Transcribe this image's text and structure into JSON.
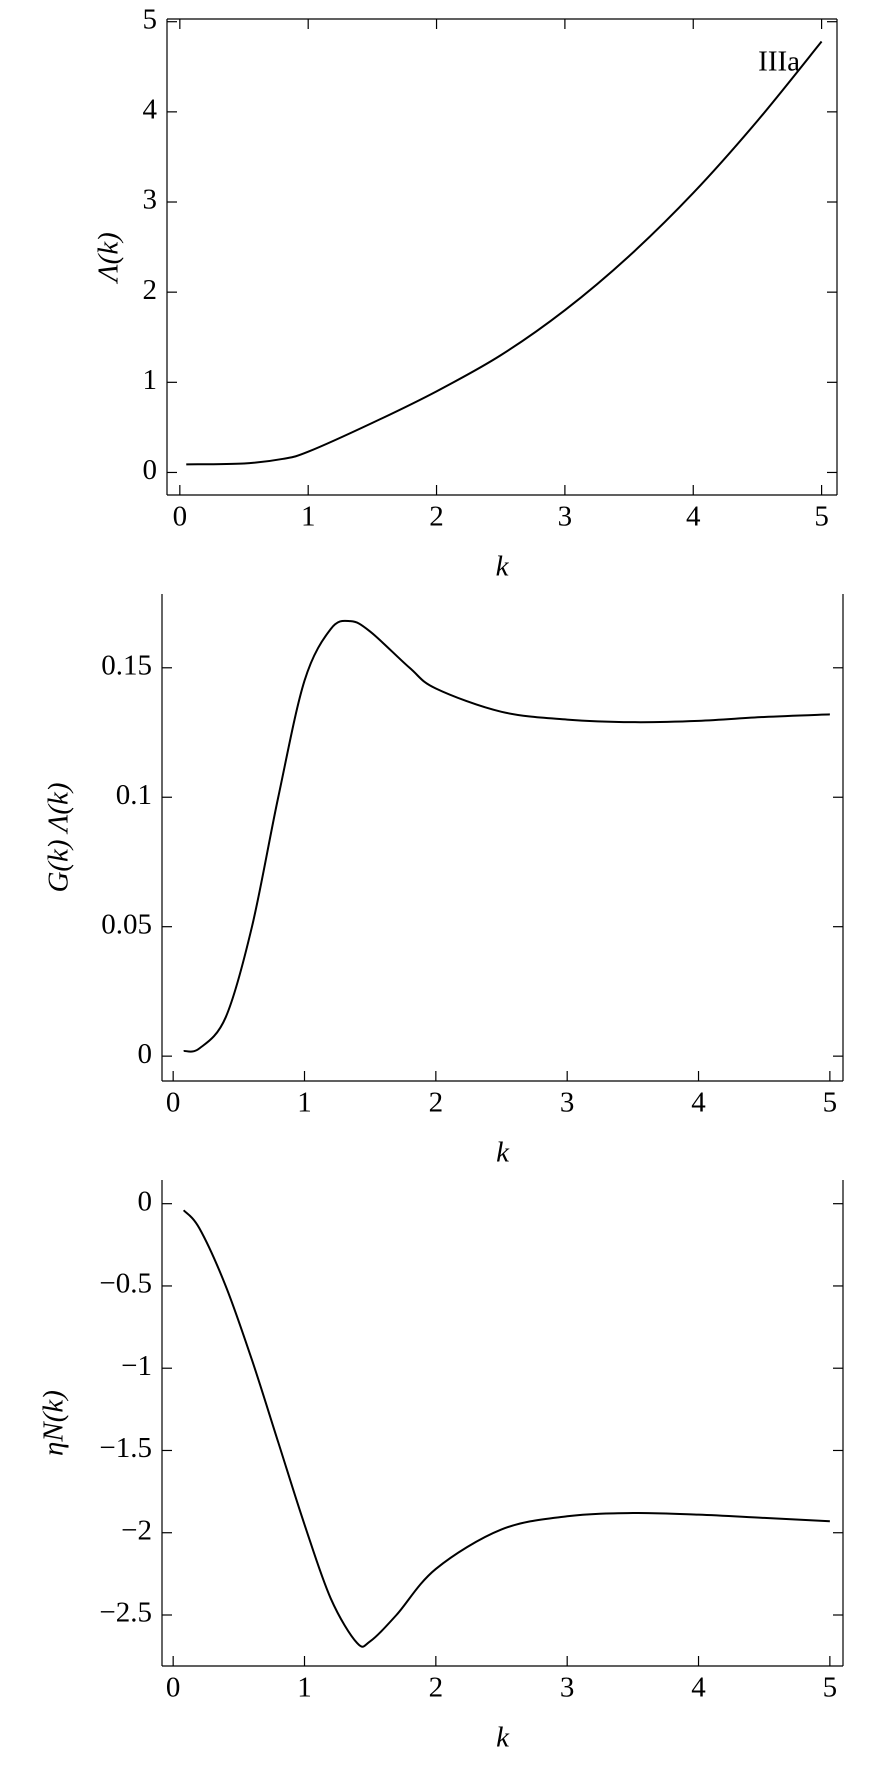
{
  "chart_data": [
    {
      "type": "line",
      "xlabel": "k",
      "ylabel": "Λ(k)",
      "annotation": "IIIa",
      "x": [
        0.05,
        0.5,
        0.8,
        1.0,
        1.5,
        2.0,
        2.5,
        3.0,
        3.5,
        4.0,
        4.5,
        5.0
      ],
      "series": [
        {
          "name": null,
          "color": "#000000",
          "values": [
            0.09,
            0.1,
            0.15,
            0.23,
            0.55,
            0.9,
            1.3,
            1.8,
            2.4,
            3.1,
            3.9,
            4.78
          ]
        }
      ],
      "xlim": [
        -0.1,
        5.12
      ],
      "ylim": [
        -0.25,
        5.03
      ],
      "xticks": [
        0,
        1,
        2,
        3,
        4,
        5
      ],
      "yticks": [
        0,
        1,
        2,
        3,
        4,
        5
      ],
      "frame_top": true
    },
    {
      "type": "line",
      "xlabel": "k",
      "ylabel": "G(k) Λ(k)",
      "x": [
        0.08,
        0.2,
        0.4,
        0.6,
        0.8,
        1.0,
        1.2,
        1.35,
        1.5,
        1.8,
        2.0,
        2.5,
        3.0,
        3.5,
        4.0,
        4.5,
        5.0
      ],
      "series": [
        {
          "name": null,
          "color": "#000000",
          "values": [
            0.002,
            0.003,
            0.015,
            0.05,
            0.1,
            0.145,
            0.165,
            0.168,
            0.164,
            0.15,
            0.142,
            0.133,
            0.13,
            0.129,
            0.1295,
            0.131,
            0.132
          ]
        }
      ],
      "xlim": [
        -0.085,
        5.1
      ],
      "ylim": [
        -0.0096,
        0.1785
      ],
      "xticks": [
        0,
        1,
        2,
        3,
        4,
        5
      ],
      "yticks": [
        0,
        0.05,
        0.1,
        0.15
      ],
      "frame_top": false
    },
    {
      "type": "line",
      "xlabel": "k",
      "ylabel": "ηN(k)",
      "x": [
        0.08,
        0.2,
        0.4,
        0.6,
        0.8,
        1.0,
        1.2,
        1.4,
        1.5,
        1.7,
        2.0,
        2.5,
        3.0,
        3.5,
        4.0,
        4.5,
        5.0
      ],
      "series": [
        {
          "name": null,
          "color": "#000000",
          "values": [
            -0.04,
            -0.15,
            -0.5,
            -0.95,
            -1.45,
            -1.95,
            -2.4,
            -2.67,
            -2.66,
            -2.5,
            -2.22,
            -1.98,
            -1.9,
            -1.88,
            -1.89,
            -1.91,
            -1.93
          ]
        }
      ],
      "xlim": [
        -0.085,
        5.1
      ],
      "ylim": [
        -2.81,
        0.144
      ],
      "xticks": [
        0,
        1,
        2,
        3,
        4,
        5
      ],
      "yticks": [
        0,
        {
          "value": -0.5,
          "label": "−0.5"
        },
        {
          "value": -1,
          "label": "−1"
        },
        {
          "value": -1.5,
          "label": "−1.5"
        },
        {
          "value": -2,
          "label": "−2"
        },
        {
          "value": -2.5,
          "label": "−2.5"
        }
      ],
      "frame_top": false
    }
  ]
}
